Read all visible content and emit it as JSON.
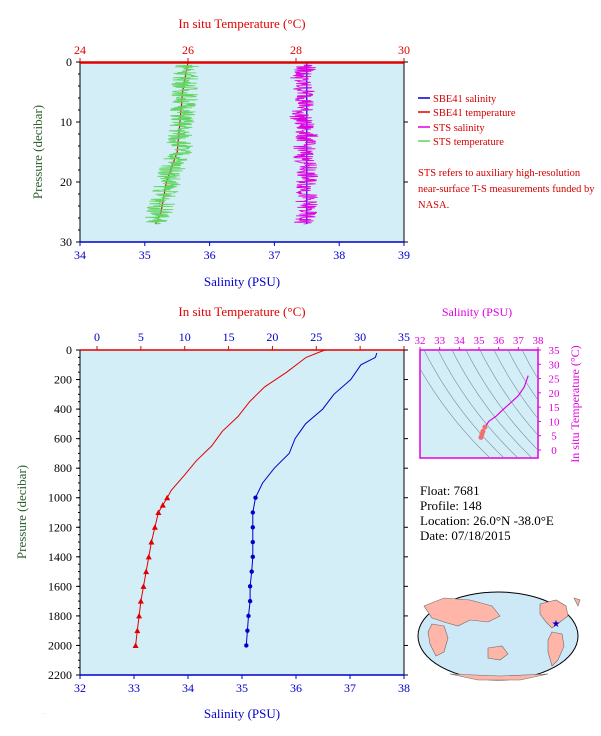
{
  "colors": {
    "plot_bg": "#d4eef8",
    "salinity": "#0000cc",
    "temperature": "#e00000",
    "sts_salinity": "#e000e0",
    "sts_temperature": "#5fd65f",
    "pressure_axis": "#2e5e2e",
    "map_sea": "#cde8f7",
    "map_land": "#ffb5a8"
  },
  "top_chart": {
    "temp_axis_title": "In situ Temperature (°C)",
    "temp_ticks": [
      "24",
      "26",
      "28",
      "30"
    ],
    "sal_axis_title": "Salinity (PSU)",
    "sal_ticks": [
      "34",
      "35",
      "36",
      "37",
      "38",
      "39"
    ],
    "pressure_axis_title": "Pressure (decibar)",
    "pressure_ticks": [
      "0",
      "10",
      "20",
      "30"
    ],
    "legend": [
      "SBE41 salinity",
      "SBE41 temperature",
      "STS salinity",
      "STS temperature"
    ],
    "note": "STS refers to auxiliary high-resolution near-surface T-S measurements funded by NASA."
  },
  "bottom_chart": {
    "temp_axis_title": "In situ Temperature (°C)",
    "temp_ticks": [
      "0",
      "5",
      "10",
      "15",
      "20",
      "25",
      "30",
      "35"
    ],
    "sal_axis_title": "Salinity (PSU)",
    "sal_ticks": [
      "32",
      "33",
      "34",
      "35",
      "36",
      "37",
      "38"
    ],
    "pressure_axis_title": "Pressure (decibar)",
    "pressure_ticks": [
      "0",
      "200",
      "400",
      "600",
      "800",
      "1000",
      "1200",
      "1400",
      "1600",
      "1800",
      "2000",
      "2200"
    ]
  },
  "ts_chart": {
    "sal_axis_title": "Salinity (PSU)",
    "sal_ticks": [
      "32",
      "33",
      "34",
      "35",
      "36",
      "37",
      "38"
    ],
    "temp_axis_title": "In situ Temperature (°C)",
    "temp_ticks": [
      "0",
      "5",
      "10",
      "15",
      "20",
      "25",
      "30",
      "35"
    ]
  },
  "info": {
    "float": "Float:  7681",
    "profile": "Profile:  148",
    "location": "Location:  26.0°N  -38.0°E",
    "date": "Date:  07/18/2015"
  },
  "chart_data": [
    {
      "type": "line",
      "title": "",
      "ylabel": "Pressure (decibar)",
      "ylim": [
        30,
        0
      ],
      "series": [
        {
          "name": "SBE41 salinity",
          "axis": "Salinity (PSU)",
          "xlim": [
            34,
            39
          ],
          "points": [
            [
              37.5,
              0
            ],
            [
              37.5,
              10
            ],
            [
              37.5,
              20
            ],
            [
              37.5,
              27
            ]
          ]
        },
        {
          "name": "SBE41 temperature",
          "axis": "In situ Temperature (°C)",
          "xlim": [
            24,
            30
          ],
          "points": [
            [
              26.0,
              0
            ],
            [
              25.9,
              5
            ],
            [
              25.85,
              10
            ],
            [
              25.8,
              15
            ],
            [
              25.6,
              20
            ],
            [
              25.5,
              25
            ],
            [
              25.4,
              27
            ]
          ]
        },
        {
          "name": "STS salinity",
          "axis": "Salinity (PSU)",
          "xlim": [
            34,
            39
          ],
          "points": [
            [
              37.5,
              0.5
            ],
            [
              37.4,
              3
            ],
            [
              37.5,
              6
            ],
            [
              37.4,
              9
            ],
            [
              37.5,
              12
            ],
            [
              37.45,
              15
            ],
            [
              37.5,
              18
            ],
            [
              37.5,
              21
            ],
            [
              37.5,
              24
            ],
            [
              37.45,
              27
            ]
          ]
        },
        {
          "name": "STS temperature",
          "axis": "In situ Temperature (°C)",
          "xlim": [
            24,
            30
          ],
          "points": [
            [
              26.0,
              0.5
            ],
            [
              25.95,
              3
            ],
            [
              25.95,
              6
            ],
            [
              25.9,
              9
            ],
            [
              25.85,
              12
            ],
            [
              25.85,
              15
            ],
            [
              25.7,
              18
            ],
            [
              25.6,
              21
            ],
            [
              25.5,
              24
            ],
            [
              25.4,
              27
            ]
          ]
        }
      ]
    },
    {
      "type": "line",
      "title": "",
      "ylabel": "Pressure (decibar)",
      "ylim": [
        2200,
        0
      ],
      "series": [
        {
          "name": "Salinity",
          "axis": "Salinity (PSU)",
          "xlim": [
            32,
            38
          ],
          "points": [
            [
              37.5,
              20
            ],
            [
              37.45,
              50
            ],
            [
              37.2,
              100
            ],
            [
              37.0,
              200
            ],
            [
              36.7,
              300
            ],
            [
              36.5,
              400
            ],
            [
              36.2,
              500
            ],
            [
              36.0,
              600
            ],
            [
              35.85,
              700
            ],
            [
              35.6,
              800
            ],
            [
              35.4,
              900
            ],
            [
              35.25,
              1000
            ],
            [
              35.2,
              1100
            ],
            [
              35.2,
              1200
            ],
            [
              35.2,
              1300
            ],
            [
              35.2,
              1400
            ],
            [
              35.18,
              1500
            ],
            [
              35.15,
              1600
            ],
            [
              35.15,
              1700
            ],
            [
              35.12,
              1800
            ],
            [
              35.1,
              1900
            ],
            [
              35.08,
              2000
            ]
          ]
        },
        {
          "name": "Temperature",
          "axis": "In situ Temperature (°C)",
          "xlim": [
            0,
            35
          ],
          "points": [
            [
              26.0,
              0
            ],
            [
              25.5,
              10
            ],
            [
              24.0,
              50
            ],
            [
              21.5,
              150
            ],
            [
              19.0,
              250
            ],
            [
              17.5,
              350
            ],
            [
              16.0,
              450
            ],
            [
              14.5,
              550
            ],
            [
              13.0,
              650
            ],
            [
              11.5,
              750
            ],
            [
              10.0,
              850
            ],
            [
              8.5,
              950
            ],
            [
              8.0,
              1000
            ],
            [
              7.5,
              1050
            ],
            [
              7.0,
              1100
            ],
            [
              6.6,
              1200
            ],
            [
              6.2,
              1300
            ],
            [
              5.9,
              1400
            ],
            [
              5.6,
              1500
            ],
            [
              5.3,
              1600
            ],
            [
              5.0,
              1700
            ],
            [
              4.8,
              1800
            ],
            [
              4.6,
              1900
            ],
            [
              4.4,
              2000
            ]
          ]
        }
      ]
    },
    {
      "type": "scatter",
      "title": "",
      "xlabel": "Salinity (PSU)",
      "ylabel": "In situ Temperature (°C)",
      "xlim": [
        32,
        38
      ],
      "ylim": [
        0,
        35
      ],
      "series": [
        {
          "name": "T-S",
          "points": [
            [
              37.5,
              26
            ],
            [
              37.3,
              22
            ],
            [
              37.0,
              19
            ],
            [
              36.6,
              16.5
            ],
            [
              36.2,
              14
            ],
            [
              35.9,
              12
            ],
            [
              35.5,
              10
            ],
            [
              35.3,
              8
            ],
            [
              35.2,
              6.5
            ],
            [
              35.15,
              5.5
            ],
            [
              35.1,
              4.4
            ]
          ]
        }
      ]
    }
  ]
}
